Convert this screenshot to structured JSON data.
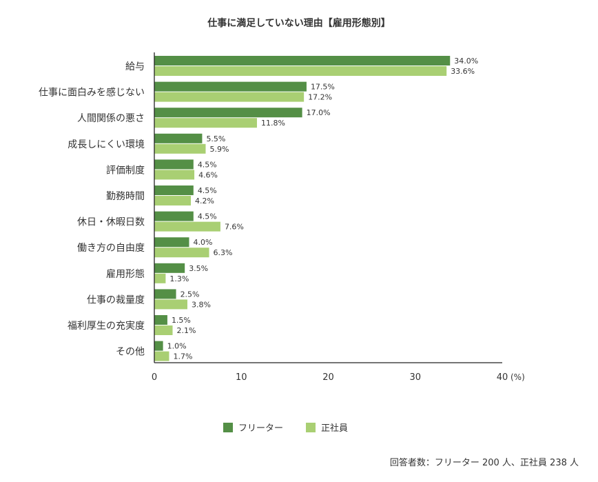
{
  "chart_data": {
    "type": "bar",
    "orientation": "horizontal",
    "title": "仕事に満足していない理由【雇用形態別】",
    "categories": [
      "給与",
      "仕事に面白みを感じない",
      "人間関係の悪さ",
      "成長しにくい環境",
      "評価制度",
      "勤務時間",
      "休日・休暇日数",
      "働き方の自由度",
      "雇用形態",
      "仕事の裁量度",
      "福利厚生の充実度",
      "その他"
    ],
    "series": [
      {
        "name": "フリーター",
        "color": "#548f46",
        "values": [
          34.0,
          17.5,
          17.0,
          5.5,
          4.5,
          4.5,
          4.5,
          4.0,
          3.5,
          2.5,
          1.5,
          1.0
        ]
      },
      {
        "name": "正社員",
        "color": "#a9cf73",
        "values": [
          33.6,
          17.2,
          11.8,
          5.9,
          4.6,
          4.2,
          7.6,
          6.3,
          1.3,
          3.8,
          2.1,
          1.7
        ]
      }
    ],
    "xlim": [
      0,
      40
    ],
    "xticks": [
      "0",
      "10",
      "20",
      "30",
      "40"
    ],
    "xunit": "(%)",
    "grid": false,
    "legend": "bottom",
    "note": "回答者数：フリーター 200 人、正社員 238 人"
  }
}
